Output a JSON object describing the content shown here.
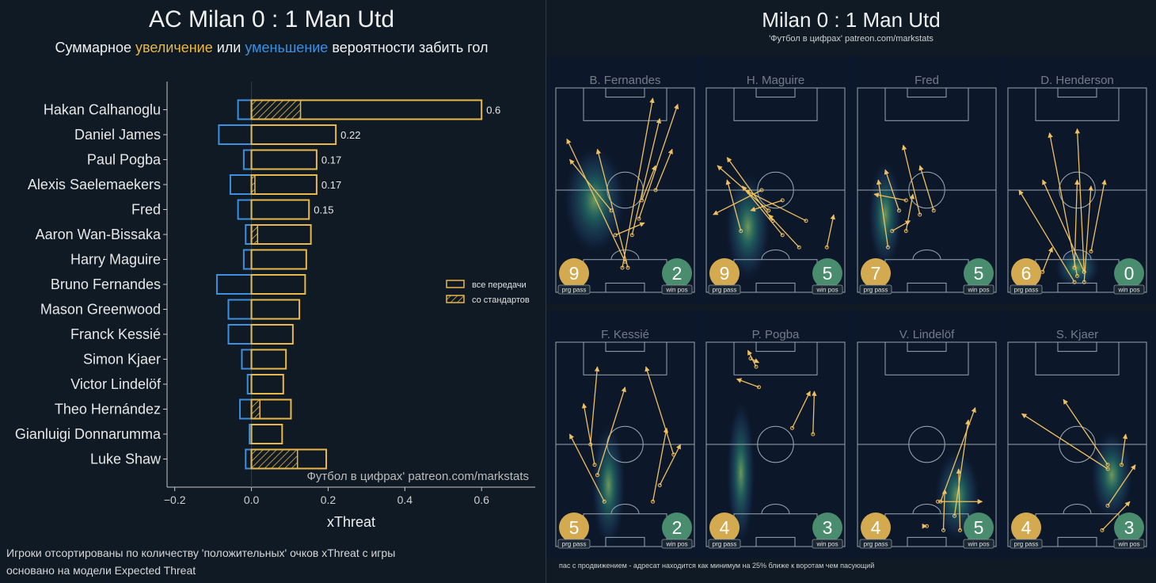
{
  "left": {
    "title": "AC Milan 0 : 1 Man Utd",
    "subtitle_parts": {
      "before": "Суммарное ",
      "up": "увеличение",
      "mid": " или ",
      "down": "уменьшение",
      "after": " вероятности забить гол"
    },
    "watermark": "Футбол в цифрах' patreon.com/markstats",
    "notes": [
      "Игроки отсортированы по количеству 'положительных' очков xThreat с игры",
      "основано на модели Expected Threat"
    ]
  },
  "colors": {
    "background": "#0f1a24",
    "positive": "#e8b84a",
    "negative": "#3d8fe0",
    "prg_circle": "#d4aa50",
    "win_circle": "#4a8c6e",
    "arrow": "#f0c060",
    "pitch_line": "#9aa5ad"
  },
  "chart_data": {
    "type": "bar",
    "orientation": "horizontal",
    "xlabel": "xThreat",
    "xlim": [
      -0.22,
      0.74
    ],
    "xticks": [
      -0.2,
      0.0,
      0.2,
      0.4,
      0.6
    ],
    "xtick_labels": [
      "−0.2",
      "0.0",
      "0.2",
      "0.4",
      "0.6"
    ],
    "legend": {
      "position": "right",
      "entries": [
        "все передачи",
        "со стандартов"
      ]
    },
    "categories": [
      "Hakan Calhanoglu",
      "Daniel James",
      "Paul Pogba",
      "Alexis Saelemaekers",
      "Fred",
      "Aaron Wan-Bissaka",
      "Harry Maguire",
      "Bruno Fernandes",
      "Mason Greenwood",
      "Franck Kessié",
      "Simon Kjaer",
      "Victor Lindelöf",
      "Theo Hernández",
      "Gianluigi Donnarumma",
      "Luke Shaw"
    ],
    "series": [
      {
        "name": "все передачи",
        "kind": "positive",
        "values": [
          0.6,
          0.22,
          0.17,
          0.17,
          0.15,
          0.155,
          0.143,
          0.14,
          0.125,
          0.108,
          0.09,
          0.083,
          0.103,
          0.08,
          0.195
        ]
      },
      {
        "name": "все передачи",
        "kind": "negative",
        "values": [
          -0.035,
          -0.085,
          -0.02,
          -0.055,
          -0.035,
          -0.015,
          -0.02,
          -0.09,
          -0.06,
          -0.06,
          -0.025,
          -0.01,
          -0.03,
          -0.005,
          -0.015
        ]
      },
      {
        "name": "со стандартов",
        "kind": "set_piece",
        "values": [
          0.128,
          0.0,
          0.0,
          0.009,
          0.0,
          0.016,
          0.0,
          0.0,
          0.0,
          0.0,
          0.0,
          0.0,
          0.022,
          0.0,
          0.12
        ]
      }
    ],
    "value_labels": [
      "0.6",
      "0.22",
      "0.17",
      "0.17",
      "0.15",
      "",
      "",
      "",
      "",
      "",
      "",
      "",
      "",
      "",
      ""
    ]
  },
  "right": {
    "title": "Milan 0 : 1 Man Utd",
    "subtitle": "'Футбол в цифрах' patreon.com/markstats",
    "footnote": "пас с продвижением - адресат находится как минимум на 25% ближе к воротам чем пасующий",
    "badge_labels": {
      "prg": "prg pass",
      "win": "win pos"
    },
    "pitches": [
      {
        "player": "B. Fernandes",
        "prg": "9",
        "win": "2",
        "passes": [
          [
            0.48,
            0.88,
            0.7,
            0.05
          ],
          [
            0.52,
            0.88,
            0.3,
            0.3
          ],
          [
            0.5,
            0.85,
            0.08,
            0.25
          ],
          [
            0.55,
            0.72,
            0.75,
            0.15
          ],
          [
            0.6,
            0.64,
            0.88,
            0.08
          ],
          [
            0.62,
            0.55,
            0.72,
            0.38
          ],
          [
            0.4,
            0.6,
            0.1,
            0.35
          ],
          [
            0.43,
            0.72,
            0.64,
            0.66
          ],
          [
            0.72,
            0.5,
            0.84,
            0.3
          ]
        ],
        "heat": [
          [
            0.28,
            0.55,
            0.22,
            0.26
          ]
        ]
      },
      {
        "player": "H. Maguire",
        "prg": "9",
        "win": "5",
        "passes": [
          [
            0.25,
            0.7,
            0.15,
            0.45
          ],
          [
            0.4,
            0.5,
            0.05,
            0.62
          ],
          [
            0.45,
            0.6,
            0.08,
            0.38
          ],
          [
            0.48,
            0.65,
            0.15,
            0.34
          ],
          [
            0.55,
            0.72,
            0.26,
            0.48
          ],
          [
            0.67,
            0.78,
            0.45,
            0.62
          ],
          [
            0.72,
            0.65,
            0.28,
            0.5
          ],
          [
            0.55,
            0.55,
            0.32,
            0.6
          ],
          [
            0.87,
            0.78,
            0.92,
            0.62
          ]
        ],
        "heat": [
          [
            0.3,
            0.68,
            0.16,
            0.26
          ]
        ]
      },
      {
        "player": "Fred",
        "prg": "7",
        "win": "5",
        "passes": [
          [
            0.22,
            0.78,
            0.15,
            0.45
          ],
          [
            0.25,
            0.7,
            0.38,
            0.65
          ],
          [
            0.3,
            0.6,
            0.2,
            0.4
          ],
          [
            0.35,
            0.7,
            0.4,
            0.52
          ],
          [
            0.55,
            0.6,
            0.45,
            0.38
          ],
          [
            0.35,
            0.55,
            0.12,
            0.52
          ],
          [
            0.45,
            0.62,
            0.33,
            0.28
          ]
        ],
        "heat": [
          [
            0.2,
            0.62,
            0.12,
            0.26
          ]
        ]
      },
      {
        "player": "D. Henderson",
        "prg": "6",
        "win": "0",
        "passes": [
          [
            0.48,
            0.95,
            0.08,
            0.5
          ],
          [
            0.55,
            0.9,
            0.25,
            0.45
          ],
          [
            0.5,
            0.92,
            0.3,
            0.22
          ],
          [
            0.55,
            0.95,
            0.6,
            0.48
          ],
          [
            0.55,
            0.9,
            0.5,
            0.2
          ],
          [
            0.48,
            0.88,
            0.5,
            0.45
          ],
          [
            0.6,
            0.8,
            0.7,
            0.45
          ],
          [
            0.25,
            0.9,
            0.32,
            0.78
          ]
        ],
        "heat": [
          [
            0.5,
            0.88,
            0.16,
            0.1
          ]
        ]
      },
      {
        "player": "F. Kessié",
        "prg": "5",
        "win": "2",
        "passes": [
          [
            0.35,
            0.78,
            0.1,
            0.45
          ],
          [
            0.7,
            0.78,
            0.8,
            0.42
          ],
          [
            0.28,
            0.6,
            0.2,
            0.3
          ],
          [
            0.3,
            0.65,
            0.5,
            0.22
          ],
          [
            0.75,
            0.7,
            0.9,
            0.5
          ],
          [
            0.85,
            0.55,
            0.65,
            0.12
          ],
          [
            0.25,
            0.5,
            0.3,
            0.12
          ]
        ],
        "heat": [
          [
            0.38,
            0.7,
            0.12,
            0.3
          ]
        ]
      },
      {
        "player": "P. Pogba",
        "prg": "4",
        "win": "3",
        "passes": [
          [
            0.62,
            0.42,
            0.75,
            0.24
          ],
          [
            0.77,
            0.45,
            0.78,
            0.24
          ],
          [
            0.38,
            0.22,
            0.22,
            0.18
          ],
          [
            0.32,
            0.08,
            0.38,
            0.1
          ],
          [
            0.36,
            0.12,
            0.3,
            0.04
          ]
        ],
        "heat": [
          [
            0.25,
            0.64,
            0.1,
            0.35
          ]
        ]
      },
      {
        "player": "V. Lindelöf",
        "prg": "4",
        "win": "5",
        "passes": [
          [
            0.6,
            0.78,
            0.85,
            0.32
          ],
          [
            0.7,
            0.85,
            0.8,
            0.38
          ],
          [
            0.74,
            0.92,
            0.73,
            0.62
          ],
          [
            0.62,
            0.92,
            0.63,
            0.72
          ],
          [
            0.58,
            0.78,
            0.9,
            0.78
          ],
          [
            0.5,
            0.9,
            0.5,
            0.9
          ]
        ],
        "heat": [
          [
            0.72,
            0.75,
            0.16,
            0.22
          ]
        ]
      },
      {
        "player": "S. Kjaer",
        "prg": "4",
        "win": "3",
        "passes": [
          [
            0.72,
            0.62,
            0.1,
            0.35
          ],
          [
            0.72,
            0.6,
            0.4,
            0.28
          ],
          [
            0.82,
            0.6,
            0.85,
            0.45
          ],
          [
            0.72,
            0.8,
            0.92,
            0.6
          ],
          [
            0.68,
            0.92,
            0.88,
            0.78
          ]
        ],
        "heat": [
          [
            0.75,
            0.65,
            0.15,
            0.22
          ]
        ]
      }
    ]
  }
}
